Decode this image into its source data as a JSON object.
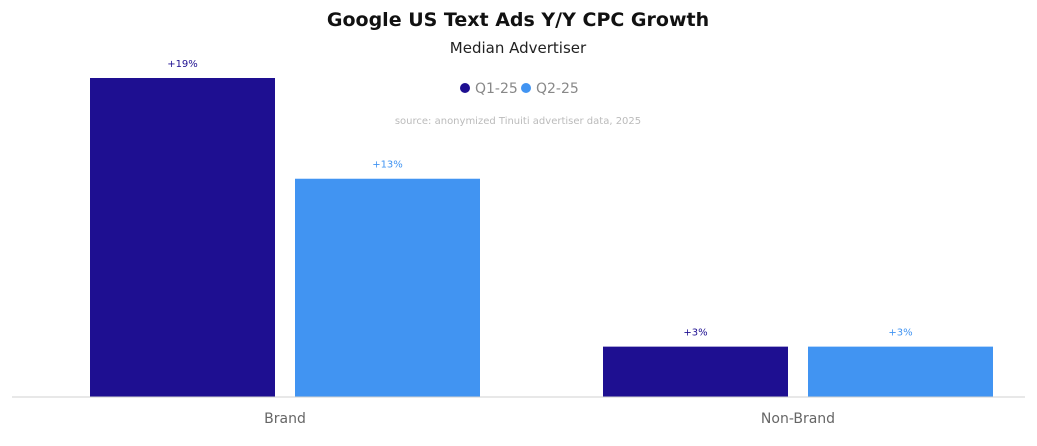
{
  "chart_data": {
    "type": "bar",
    "title": "Google US Text Ads Y/Y CPC Growth",
    "subtitle": "Median Advertiser",
    "source": "source: anonymized Tinuiti advertiser data, 2025",
    "categories": [
      "Brand",
      "Non-Brand"
    ],
    "series": [
      {
        "name": "Q1-25",
        "color": "#1e0f91",
        "values": [
          19,
          3
        ],
        "labels": [
          "+19%",
          "+3%"
        ]
      },
      {
        "name": "Q2-25",
        "color": "#4194f2",
        "values": [
          13,
          3
        ],
        "labels": [
          "+13%",
          "+3%"
        ]
      }
    ],
    "ylim": [
      0,
      19
    ],
    "legend": "top-center",
    "grid": false,
    "xlabel": "",
    "ylabel": ""
  }
}
